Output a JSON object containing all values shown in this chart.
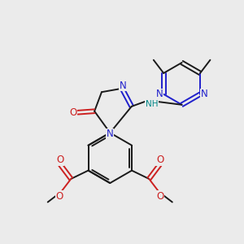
{
  "bg_color": "#ebebeb",
  "bond_color": "#1a1a1a",
  "n_color": "#2020cc",
  "o_color": "#cc2020",
  "nh_color": "#008888",
  "fig_size": [
    3.0,
    3.0
  ],
  "dpi": 100,
  "xlim": [
    0,
    10
  ],
  "ylim": [
    0,
    10
  ]
}
